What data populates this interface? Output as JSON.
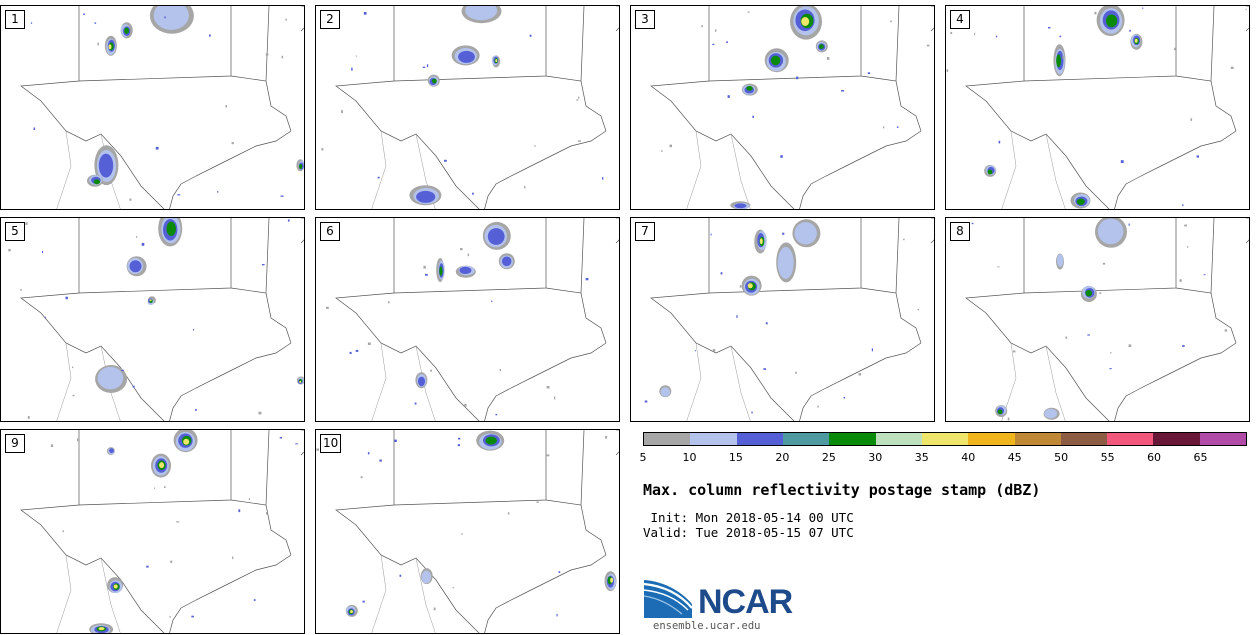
{
  "panels": [
    {
      "label": "1"
    },
    {
      "label": "2"
    },
    {
      "label": "3"
    },
    {
      "label": "4"
    },
    {
      "label": "5"
    },
    {
      "label": "6"
    },
    {
      "label": "7"
    },
    {
      "label": "8"
    },
    {
      "label": "9"
    },
    {
      "label": "10"
    }
  ],
  "colorbar": {
    "colors": [
      "#a6a6a6",
      "#b4c3ec",
      "#5560d6",
      "#4f9aa0",
      "#0a8a0a",
      "#bde0bd",
      "#eee66a",
      "#f0b41c",
      "#bf8836",
      "#8c5c45",
      "#f1587c",
      "#6a1838",
      "#b04ca8"
    ],
    "ticks": [
      "5",
      "10",
      "15",
      "20",
      "25",
      "30",
      "35",
      "40",
      "45",
      "50",
      "55",
      "60",
      "65"
    ]
  },
  "title": "Max. column reflectivity postage stamp (dBZ)",
  "init_line": " Init: Mon 2018-05-14 00 UTC",
  "valid_line": "Valid: Tue 2018-05-15 07 UTC",
  "logo": {
    "name": "NCAR",
    "url": "ensemble.ucar.edu"
  }
}
